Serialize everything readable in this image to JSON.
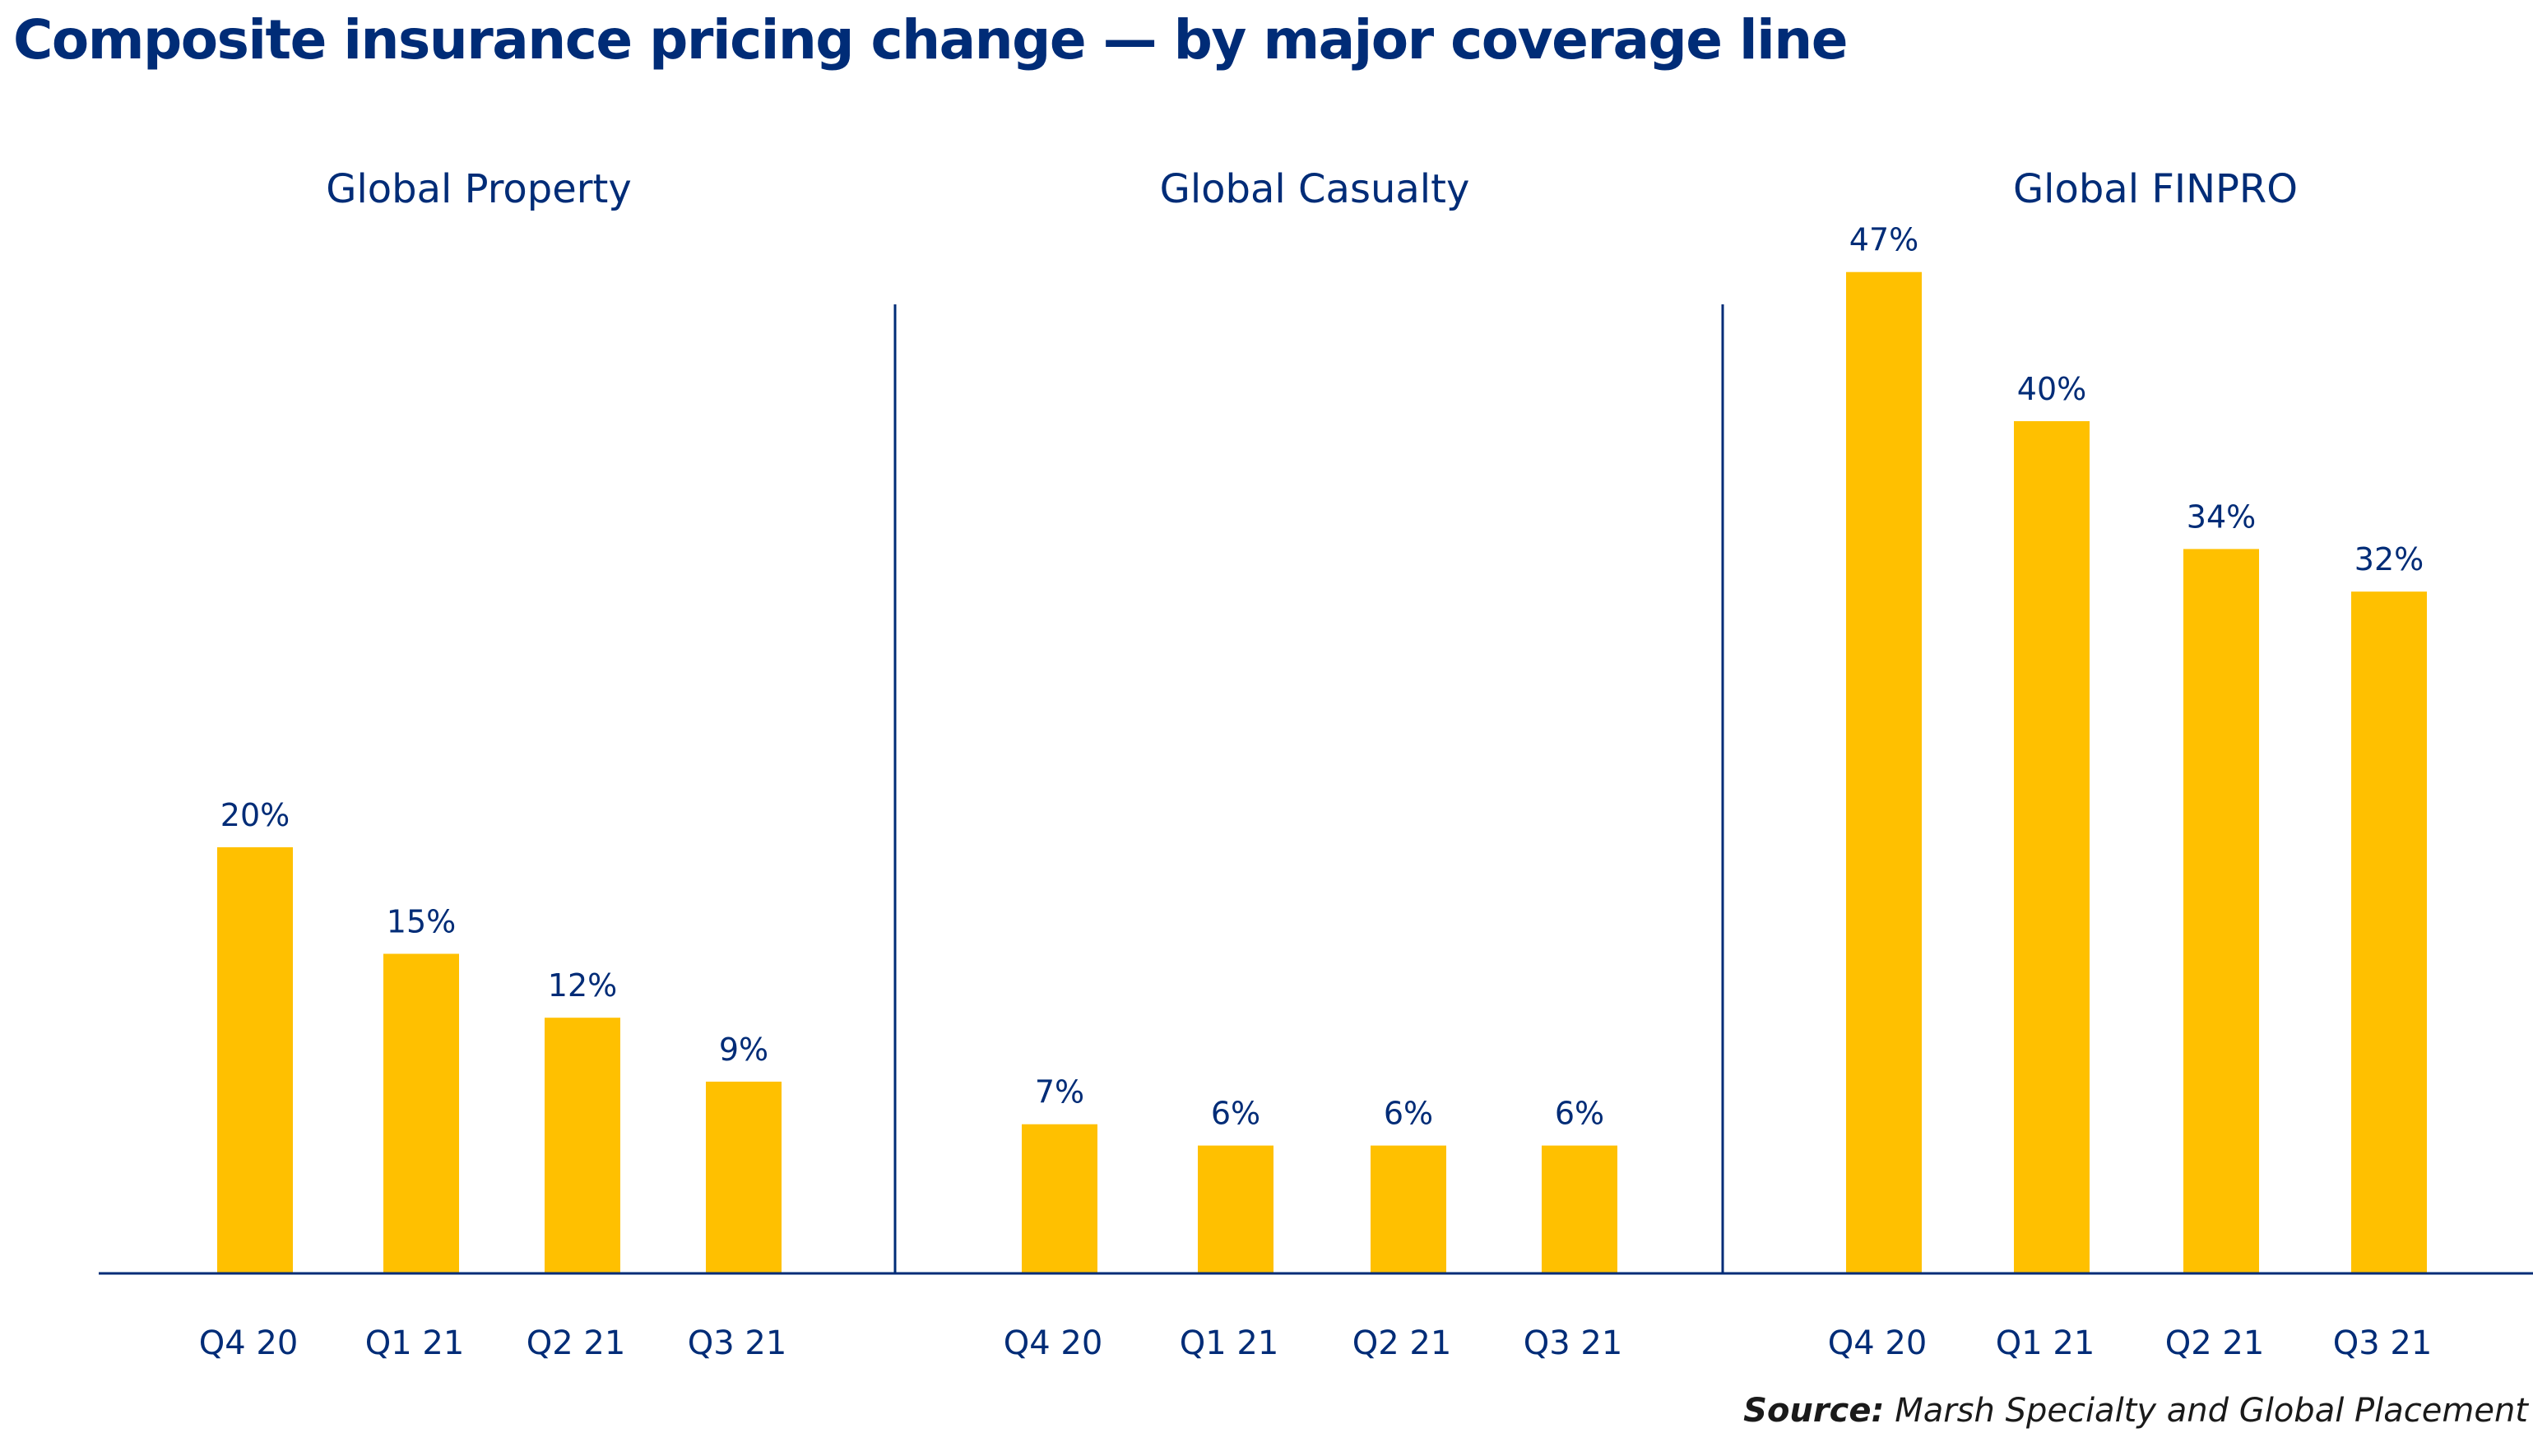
{
  "title": "Composite insurance pricing change — by major coverage line",
  "source": {
    "label": "Source:",
    "text": "Marsh Specialty and Global Placement"
  },
  "colors": {
    "bar": "#FFC000",
    "text": "#002C77",
    "axis": "#002C77"
  },
  "chart_data": [
    {
      "type": "bar",
      "title": "Global Property",
      "categories": [
        "Q4 20",
        "Q1 21",
        "Q2 21",
        "Q3 21"
      ],
      "values": [
        20,
        15,
        12,
        9
      ],
      "labels": [
        "20%",
        "15%",
        "12%",
        "9%"
      ],
      "ylim": [
        0,
        50
      ]
    },
    {
      "type": "bar",
      "title": "Global Casualty",
      "categories": [
        "Q4 20",
        "Q1 21",
        "Q2 21",
        "Q3 21"
      ],
      "values": [
        7,
        6,
        6,
        6
      ],
      "labels": [
        "7%",
        "6%",
        "6%",
        "6%"
      ],
      "ylim": [
        0,
        50
      ]
    },
    {
      "type": "bar",
      "title": "Global FINPRO",
      "categories": [
        "Q4 20",
        "Q1 21",
        "Q2 21",
        "Q3 21"
      ],
      "values": [
        47,
        40,
        34,
        32
      ],
      "labels": [
        "47%",
        "40%",
        "34%",
        "32%"
      ],
      "ylim": [
        0,
        50
      ]
    }
  ]
}
